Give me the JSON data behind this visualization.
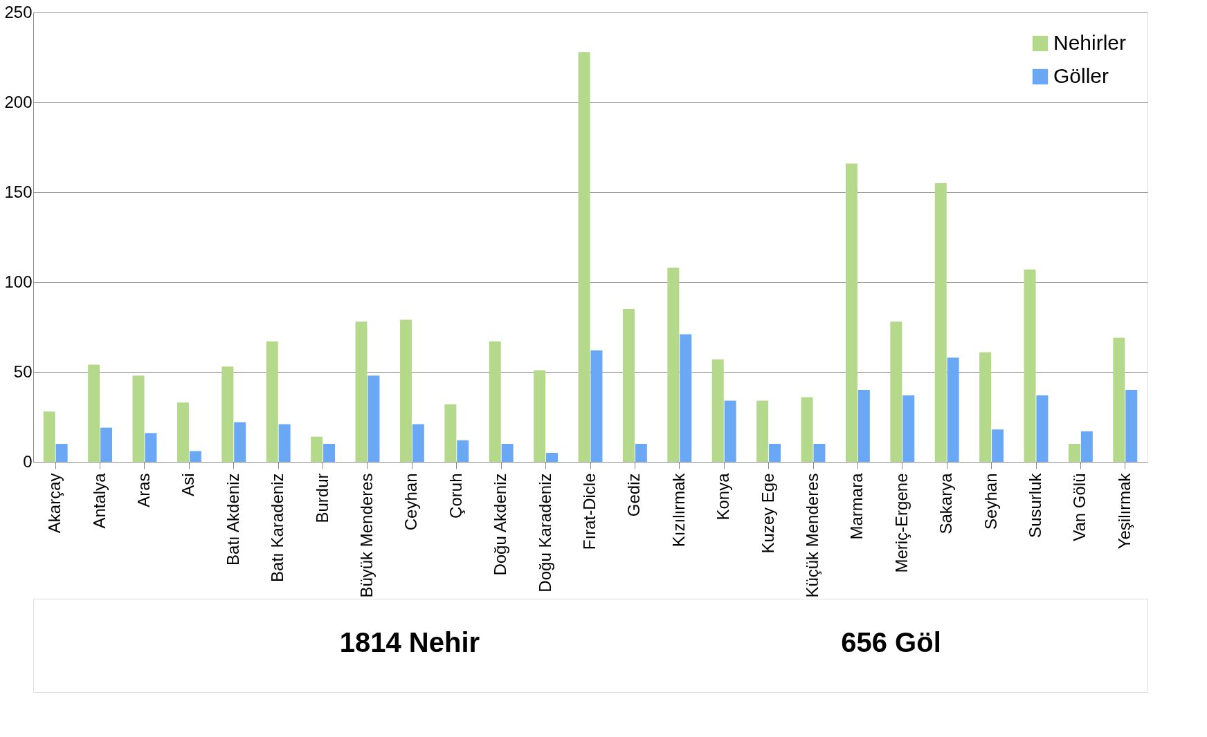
{
  "chart_data": {
    "type": "bar",
    "categories": [
      "Akarçay",
      "Antalya",
      "Aras",
      "Asi",
      "Batı Akdeniz",
      "Batı Karadeniz",
      "Burdur",
      "Büyük Menderes",
      "Ceyhan",
      "Çoruh",
      "Doğu Akdeniz",
      "Doğu Karadeniz",
      "Fırat-Dicle",
      "Gediz",
      "Kızılırmak",
      "Konya",
      "Kuzey Ege",
      "Küçük Menderes",
      "Marmara",
      "Meriç-Ergene",
      "Sakarya",
      "Seyhan",
      "Susurluk",
      "Van Gölü",
      "Yeşilırmak"
    ],
    "series": [
      {
        "name": "Nehirler",
        "color": "#b5d98a",
        "values": [
          28,
          54,
          48,
          33,
          53,
          67,
          14,
          78,
          79,
          32,
          67,
          51,
          228,
          85,
          108,
          57,
          34,
          36,
          166,
          78,
          155,
          61,
          107,
          10,
          69
        ]
      },
      {
        "name": "Göller",
        "color": "#6aa8f5",
        "values": [
          10,
          19,
          16,
          6,
          22,
          21,
          10,
          48,
          21,
          12,
          10,
          5,
          62,
          10,
          71,
          34,
          10,
          10,
          40,
          37,
          58,
          18,
          37,
          17,
          40
        ]
      }
    ],
    "ylim": [
      0,
      250
    ],
    "yticks": [
      0,
      50,
      100,
      150,
      200,
      250
    ],
    "grid": "y",
    "legend": "top right",
    "annotations": [
      "1814 Nehir",
      "656 Göl"
    ]
  }
}
